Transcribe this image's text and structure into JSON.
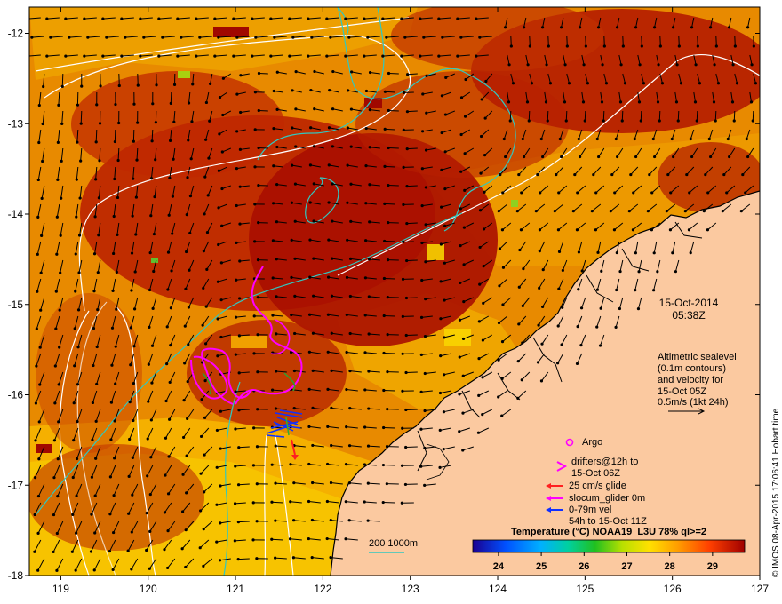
{
  "map": {
    "date": "15-Oct-2014",
    "time": "05:38Z",
    "altimetry_note": [
      "Altimetric sealevel",
      "(0.1m contours)",
      "and velocity for",
      "15-Oct 05Z"
    ],
    "velocity_scale_label": "0.5m/s (1kt 24h)",
    "credit": "© IMOS 08-Apr-2015 17:06:41 Hobart time",
    "x_ticks": [
      "119",
      "120",
      "121",
      "122",
      "123",
      "124",
      "125",
      "126",
      "127"
    ],
    "y_ticks": [
      "-12",
      "-13",
      "-14",
      "-15",
      "-16",
      "-17",
      "-18"
    ],
    "legend": {
      "argo": "Argo",
      "drifters": [
        "drifters@12h to",
        "15-Oct 06Z"
      ],
      "glide": "25 cm/s glide",
      "glider": "slocum_glider 0m",
      "vel": [
        "0-79m vel",
        "54h to 15-Oct 11Z"
      ],
      "isobaths": "200  1000m"
    },
    "colorbar": {
      "title": "Temperature (°C) NOAA19_L3U 78% ql>=2",
      "ticks": [
        "24",
        "25",
        "26",
        "27",
        "28",
        "29"
      ]
    },
    "colors": {
      "land": "#fbc9a0",
      "sst_hot": "#a20a00",
      "sst_warm": "#d85a00",
      "sst_mid": "#f0a000",
      "sst_cool": "#f8d000",
      "isobath": "#30c8c0",
      "drifter": "#ff00ff",
      "glider_vel": "#1030ff",
      "glide_arrow": "#ff2020"
    }
  }
}
